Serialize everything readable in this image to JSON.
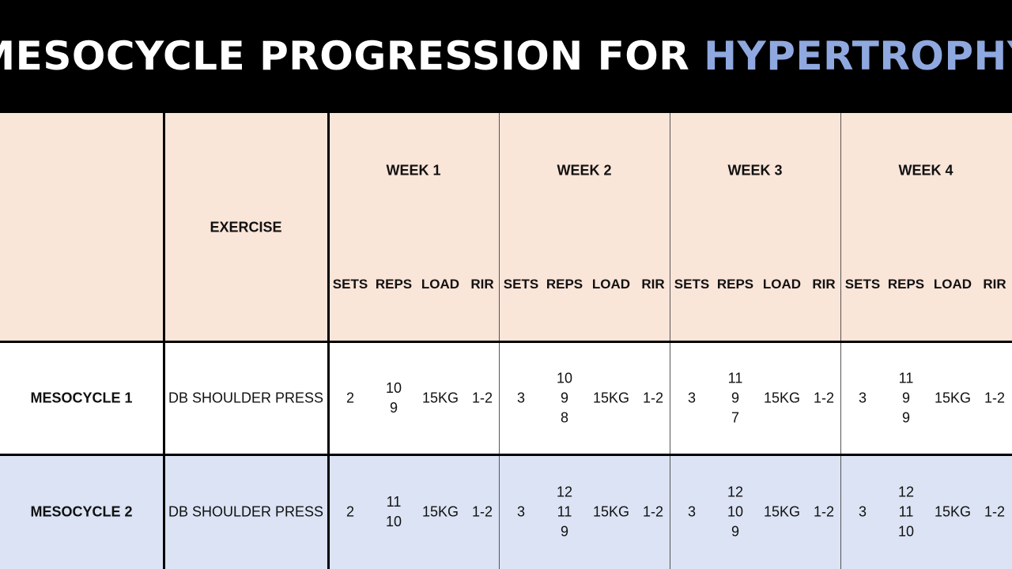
{
  "title": {
    "main": "MESOCYCLE PROGRESSION FOR",
    "accent": "HYPERTROPHY"
  },
  "colors": {
    "accent": "#8fa8df",
    "header_bg": "#fae5d9",
    "row2_bg": "#dbe3f4",
    "banner_bg": "#000000"
  },
  "table": {
    "exercise_header": "EXERCISE",
    "weeks": [
      "WEEK 1",
      "WEEK 2",
      "WEEK 3",
      "WEEK 4"
    ],
    "subcolumns": [
      "SETS",
      "REPS",
      "LOAD",
      "RIR"
    ],
    "rows": [
      {
        "label": "MESOCYCLE 1",
        "exercise": "DB SHOULDER PRESS",
        "weeks": [
          {
            "sets": "2",
            "reps": [
              "10",
              "9"
            ],
            "load": "15KG",
            "rir": "1-2"
          },
          {
            "sets": "3",
            "reps": [
              "10",
              "9",
              "8"
            ],
            "load": "15KG",
            "rir": "1-2"
          },
          {
            "sets": "3",
            "reps": [
              "11",
              "9",
              "7"
            ],
            "load": "15KG",
            "rir": "1-2"
          },
          {
            "sets": "3",
            "reps": [
              "11",
              "9",
              "9"
            ],
            "load": "15KG",
            "rir": "1-2"
          }
        ]
      },
      {
        "label": "MESOCYCLE 2",
        "exercise": "DB SHOULDER PRESS",
        "weeks": [
          {
            "sets": "2",
            "reps": [
              "11",
              "10"
            ],
            "load": "15KG",
            "rir": "1-2"
          },
          {
            "sets": "3",
            "reps": [
              "12",
              "11",
              "9"
            ],
            "load": "15KG",
            "rir": "1-2"
          },
          {
            "sets": "3",
            "reps": [
              "12",
              "10",
              "9"
            ],
            "load": "15KG",
            "rir": "1-2"
          },
          {
            "sets": "3",
            "reps": [
              "12",
              "11",
              "10"
            ],
            "load": "15KG",
            "rir": "1-2"
          }
        ]
      }
    ]
  }
}
